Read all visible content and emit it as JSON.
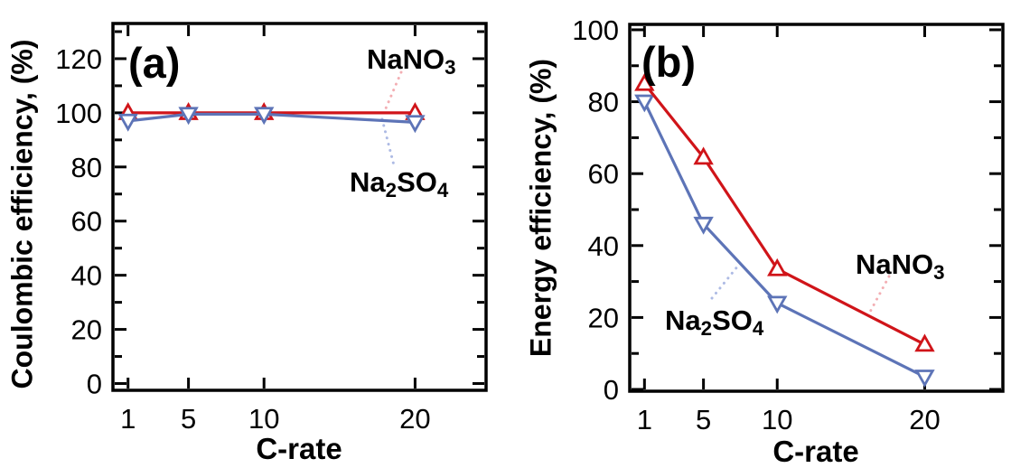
{
  "figure": {
    "background": "#ffffff",
    "axis_color": "#000000"
  },
  "chart_data": [
    {
      "type": "line",
      "panel": "(a)",
      "xlabel": "C-rate",
      "ylabel": "Coulombic efficiency, (%)",
      "x": [
        1,
        5,
        10,
        20
      ],
      "xticks": [
        1,
        5,
        10,
        20
      ],
      "yticks": [
        0,
        20,
        40,
        60,
        80,
        100,
        120
      ],
      "y_minor_step": 10,
      "xlim": [
        0,
        24.7
      ],
      "ylim": [
        -2.5,
        133
      ],
      "grid": false,
      "legend_position": "annotated-inline",
      "series": [
        {
          "name": "NaNO3",
          "marker": "open-triangle-up",
          "color": "#d01419",
          "values": [
            100,
            100,
            100,
            100
          ]
        },
        {
          "name": "Na2SO4",
          "marker": "open-triangle-down",
          "color": "#5d74b7",
          "values": [
            97,
            99.5,
            99.5,
            96.5
          ]
        }
      ],
      "annotations": [
        {
          "series": "NaNO3",
          "label_parts": [
            {
              "t": "NaNO"
            },
            {
              "t": "3",
              "sub": true
            }
          ],
          "leader_color": "#f3aeb3",
          "leader_from": [
            444,
            80
          ],
          "leader_to": [
            427,
            120
          ]
        },
        {
          "series": "Na2SO4",
          "label_parts": [
            {
              "t": "Na"
            },
            {
              "t": "2",
              "sub": true
            },
            {
              "t": "SO"
            },
            {
              "t": "4",
              "sub": true
            }
          ],
          "leader_color": "#adbae4",
          "leader_from": [
            423,
            132
          ],
          "leader_to": [
            436,
            183
          ]
        }
      ]
    },
    {
      "type": "line",
      "panel": "(b)",
      "xlabel": "C-rate",
      "ylabel": "Energy efficiency, (%)",
      "x": [
        1,
        5,
        10,
        20
      ],
      "xticks": [
        1,
        5,
        10,
        20
      ],
      "yticks": [
        0,
        20,
        40,
        60,
        80,
        100
      ],
      "y_minor_step": 10,
      "xlim": [
        0,
        25.3
      ],
      "ylim": [
        -0.5,
        101.5
      ],
      "grid": false,
      "legend_position": "annotated-inline",
      "series": [
        {
          "name": "Na2SO4",
          "marker": "open-triangle-down",
          "color": "#5d74b7",
          "values": [
            80,
            46,
            24,
            3.5
          ]
        },
        {
          "name": "NaNO3",
          "marker": "open-triangle-up",
          "color": "#d01419",
          "values": [
            85,
            64.5,
            33.5,
            12.5
          ]
        }
      ],
      "annotations": [
        {
          "series": "NaNO3",
          "label_parts": [
            {
              "t": "NaNO"
            },
            {
              "t": "3",
              "sub": true
            }
          ],
          "leader_color": "#f3aeb3",
          "leader_from": [
            984,
            306
          ],
          "leader_to": [
            962,
            347
          ]
        },
        {
          "series": "Na2SO4",
          "label_parts": [
            {
              "t": "Na"
            },
            {
              "t": "2",
              "sub": true
            },
            {
              "t": "SO"
            },
            {
              "t": "4",
              "sub": true
            }
          ],
          "leader_color": "#adbae4",
          "leader_from": [
            788,
            330
          ],
          "leader_to": [
            817,
            294
          ]
        }
      ]
    }
  ]
}
